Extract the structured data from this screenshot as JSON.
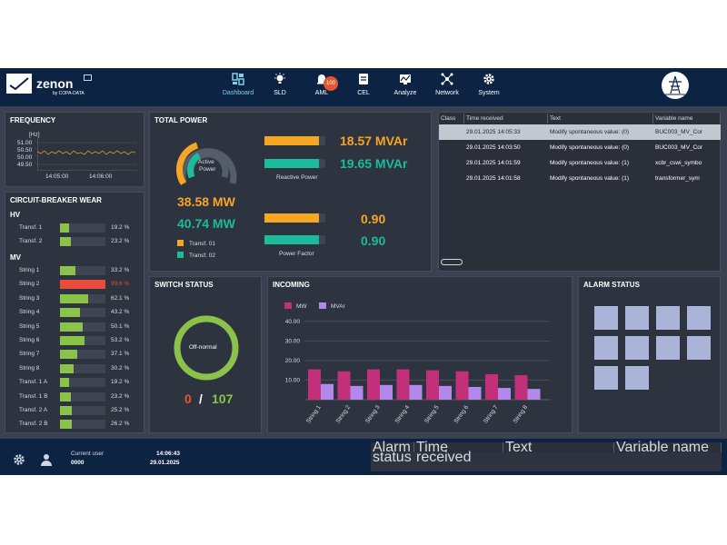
{
  "app": {
    "logo_text": "zenon",
    "logo_sub": "by COPA-DATA"
  },
  "nav": [
    {
      "label": "Dashboard",
      "icon": "dashboard-icon"
    },
    {
      "label": "SLD",
      "icon": "lightbulb-icon"
    },
    {
      "label": "AML",
      "icon": "alarm-bell-icon",
      "badge": "100"
    },
    {
      "label": "CEL",
      "icon": "clipboard-icon"
    },
    {
      "label": "Analyze",
      "icon": "analyze-icon"
    },
    {
      "label": "Network",
      "icon": "network-icon"
    },
    {
      "label": "System",
      "icon": "gear-icon"
    }
  ],
  "frequency": {
    "title": "FREQUENCY",
    "unit": "[Hz]",
    "ticks_y": [
      "51.00",
      "50.50",
      "50.00",
      "49.50"
    ],
    "ticks_x": [
      "14:05:00",
      "14:06:00"
    ]
  },
  "total_power": {
    "title": "TOTAL POWER",
    "gauge_label_1": "Active",
    "gauge_label_2": "Power",
    "mw_1": "38.58 MW",
    "mw_2": "40.74 MW",
    "mvar_1": "18.57 MVAr",
    "mvar_2": "19.65 MVAr",
    "reactive_label": "Reactive Power",
    "pf_1": "0.90",
    "pf_2": "0.90",
    "pf_label": "Power Factor",
    "legend_1": "Transf. 01",
    "legend_2": "Transf. 02",
    "reactive_fill": [
      0.9,
      0.9
    ],
    "pf_fill": [
      0.9,
      0.9
    ]
  },
  "cel_table": {
    "headers": [
      "Class",
      "Time received",
      "Text",
      "Variable name"
    ],
    "rows": [
      {
        "time": "29.01.2025 14:05:33",
        "text": "Modify spontaneous value: (0)",
        "var": "BUC003_MV_Cor"
      },
      {
        "time": "29.01.2025 14:03:50",
        "text": "Modify spontaneous value: (0)",
        "var": "BUC003_MV_Cor"
      },
      {
        "time": "29.01.2025 14:01:59",
        "text": "Modify spontaneous value: (1)",
        "var": "xcbr_cswi_symbo"
      },
      {
        "time": "29.01.2025 14:01:58",
        "text": "Modify spontaneous value: (1)",
        "var": "transformer_sym"
      }
    ]
  },
  "breaker_wear": {
    "title": "CIRCUIT-BREAKER WEAR",
    "hv_label": "HV",
    "mv_label": "MV",
    "hv_items": [
      {
        "name": "Transf. 1",
        "value": "19.2 %",
        "frac": 0.192
      },
      {
        "name": "Transf. 2",
        "value": "23.2 %",
        "frac": 0.232
      }
    ],
    "mv_items": [
      {
        "name": "String 1",
        "value": "33.2 %",
        "frac": 0.332
      },
      {
        "name": "String 2",
        "value": "99.6 %",
        "frac": 0.996,
        "alarm": true
      },
      {
        "name": "String 3",
        "value": "62.1 %",
        "frac": 0.621
      },
      {
        "name": "String 4",
        "value": "43.2 %",
        "frac": 0.432
      },
      {
        "name": "String 5",
        "value": "50.1 %",
        "frac": 0.501
      },
      {
        "name": "String 6",
        "value": "53.2 %",
        "frac": 0.532
      },
      {
        "name": "String 7",
        "value": "37.1 %",
        "frac": 0.371
      },
      {
        "name": "String 8",
        "value": "30.2 %",
        "frac": 0.302
      },
      {
        "name": "Transf. 1 A",
        "value": "19.2 %",
        "frac": 0.192
      },
      {
        "name": "Transf. 1 B",
        "value": "23.2 %",
        "frac": 0.232
      },
      {
        "name": "Transf. 2 A",
        "value": "25.2 %",
        "frac": 0.252
      },
      {
        "name": "Transf. 2 B",
        "value": "26.2 %",
        "frac": 0.262
      }
    ]
  },
  "switch_status": {
    "title": "SWITCH STATUS",
    "ring_label": "Off-normal",
    "count_off": "0",
    "separator": "/",
    "count_total": "107"
  },
  "incoming": {
    "title": "INCOMING"
  },
  "chart_data": {
    "type": "bar",
    "categories": [
      "String 1",
      "String 2",
      "String 3",
      "String 4",
      "String 5",
      "String 6",
      "String 7",
      "String 8"
    ],
    "series": [
      {
        "name": "MW",
        "values": [
          15.5,
          14.5,
          15.5,
          15.5,
          15.0,
          14.5,
          13.0,
          12.5
        ],
        "color": "#c2307a"
      },
      {
        "name": "MVAr",
        "values": [
          8.0,
          7.0,
          7.5,
          7.5,
          7.0,
          6.5,
          6.0,
          5.5
        ],
        "color": "#b388eb"
      }
    ],
    "yticks": [
      "40.00",
      "30.00",
      "20.00",
      "10.00"
    ],
    "ylim": [
      0,
      45
    ]
  },
  "alarm_status": {
    "title": "ALARM STATUS"
  },
  "footer": {
    "current_user_label": "Current user",
    "current_user_value": "0000",
    "time": "14:06:43",
    "date": "29.01.2025",
    "alarm_headers": [
      "Alarm status",
      "Time received",
      "Text",
      "Variable name"
    ]
  },
  "colors": {
    "orange": "#f5a623",
    "teal": "#1abc9c",
    "green_bar": "#8bc34a",
    "alarm_red": "#e74c3c",
    "alarm_tile": "#a9b4d8"
  }
}
